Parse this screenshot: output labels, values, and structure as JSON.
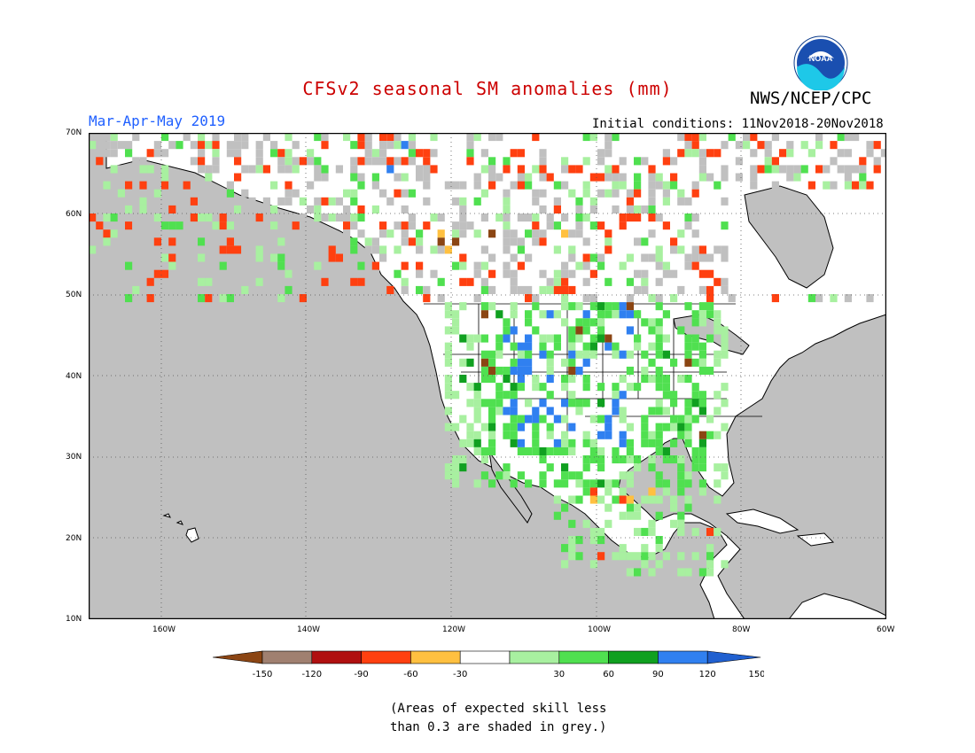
{
  "title": "CFSv2 seasonal SM anomalies (mm)",
  "organization": "NWS/NCEP/CPC",
  "logo_text": "NOAA",
  "season": "Mar-Apr-May 2019",
  "initial_conditions": "Initial conditions: 11Nov2018-20Nov2018",
  "map": {
    "lon_range": [
      -170,
      -60
    ],
    "lat_range": [
      10,
      70
    ],
    "lon_ticks": [
      "160W",
      "140W",
      "120W",
      "100W",
      "80W",
      "60W"
    ],
    "lat_ticks": [
      "70N",
      "60N",
      "50N",
      "40N",
      "30N",
      "20N",
      "10N"
    ],
    "land_color": "#ffffff",
    "ocean_color": "#c0c0c0"
  },
  "legend": {
    "labels": [
      "-150",
      "-120",
      "-90",
      "-60",
      "-30",
      "30",
      "60",
      "90",
      "120",
      "150"
    ],
    "colors": [
      "#8b4513",
      "#a08070",
      "#b01010",
      "#ff4010",
      "#ffc040",
      "#ffffff",
      "#a8f0a0",
      "#50e050",
      "#10a020",
      "#3080f0",
      "#2060d0"
    ]
  },
  "note_line1": "(Areas of expected skill less",
  "note_line2": "than 0.3 are shaded in grey.)",
  "colors": {
    "title": "#cc0000",
    "season": "#2060ff"
  }
}
